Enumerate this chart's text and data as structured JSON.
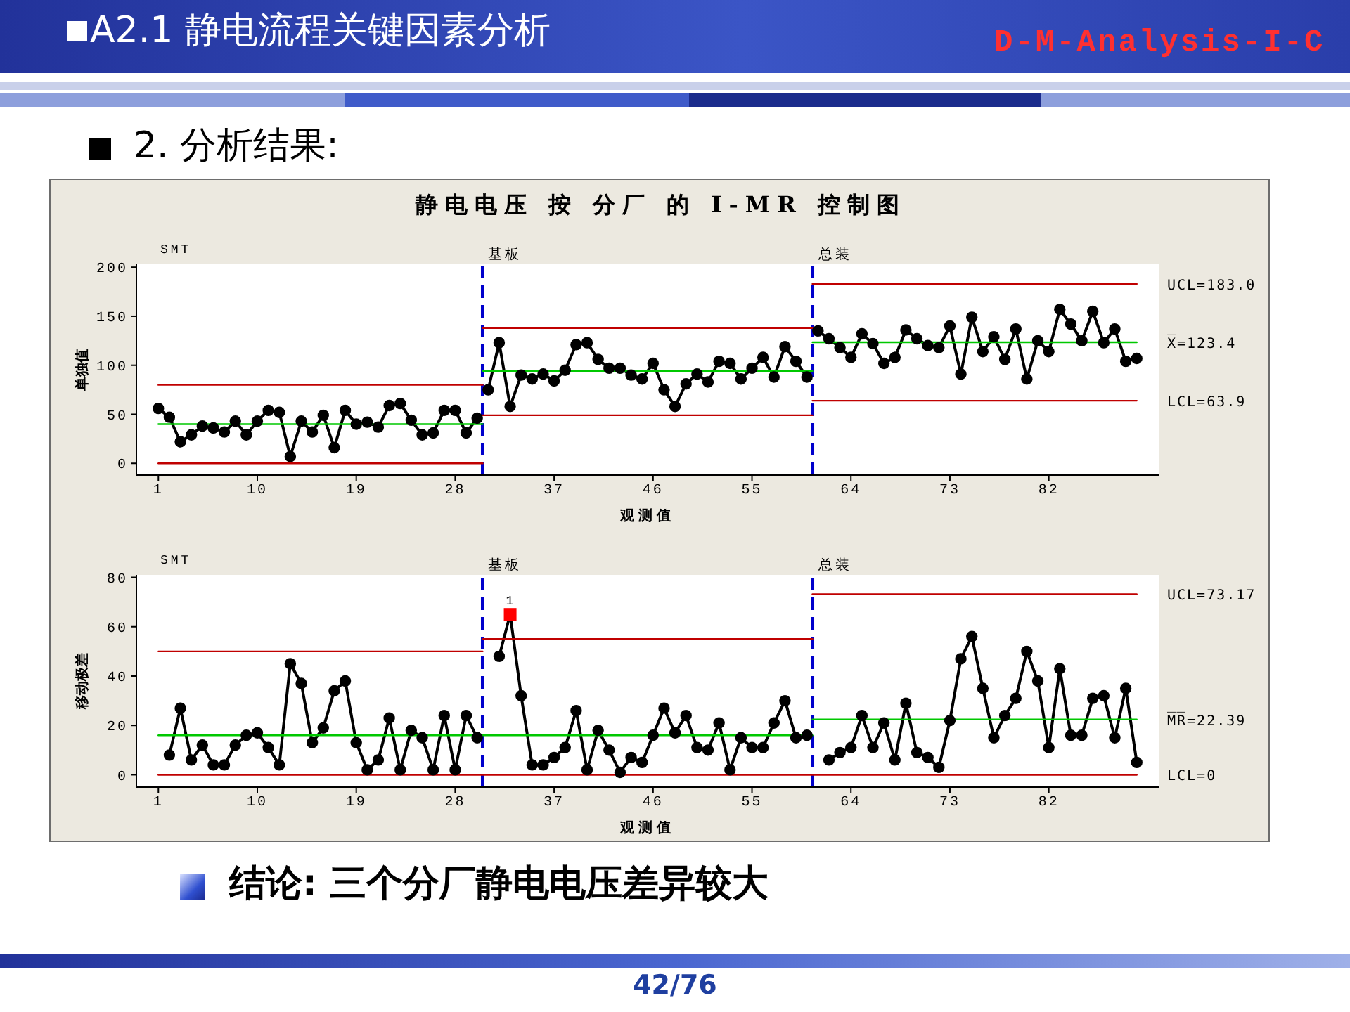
{
  "chart_data": [
    {
      "type": "line",
      "title": "静电电压 按 分厂 的 I-MR 控制图",
      "xlabel": "观测值",
      "ylabel": "单独值",
      "marker": "circle",
      "line_style": "solid",
      "xlim": [
        -1,
        92
      ],
      "xticks": [
        1,
        10,
        19,
        28,
        37,
        46,
        55,
        64,
        73,
        82
      ],
      "ylim": [
        -12,
        203
      ],
      "yticks": [
        0,
        50,
        100,
        150,
        200
      ],
      "series": [
        {
          "color": "#000000",
          "x": [
            1,
            2,
            3,
            4,
            5,
            6,
            7,
            8,
            9,
            10,
            11,
            12,
            13,
            14,
            15,
            16,
            17,
            18,
            19,
            20,
            21,
            22,
            23,
            24,
            25,
            26,
            27,
            28,
            29,
            30
          ],
          "values": [
            56,
            47,
            22,
            29,
            38,
            36,
            32,
            43,
            29,
            43,
            54,
            52,
            7,
            43,
            32,
            49,
            16,
            54,
            40,
            42,
            37,
            59,
            61,
            44,
            29,
            31,
            54,
            54,
            31,
            46
          ]
        },
        {
          "color": "#000000",
          "x": [
            31,
            32,
            33,
            34,
            35,
            36,
            37,
            38,
            39,
            40,
            41,
            42,
            43,
            44,
            45,
            46,
            47,
            48,
            49,
            50,
            51,
            52,
            53,
            54,
            55,
            56,
            57,
            58,
            59,
            60
          ],
          "values": [
            75,
            123,
            58,
            90,
            86,
            91,
            84,
            95,
            121,
            123,
            106,
            97,
            97,
            90,
            86,
            102,
            75,
            58,
            81,
            91,
            83,
            104,
            102,
            86,
            97,
            108,
            88,
            119,
            104,
            88
          ]
        },
        {
          "color": "#000000",
          "x": [
            61,
            62,
            63,
            64,
            65,
            66,
            67,
            68,
            69,
            70,
            71,
            72,
            73,
            74,
            75,
            76,
            77,
            78,
            79,
            80,
            81,
            82,
            83,
            84,
            85,
            86,
            87,
            88,
            89,
            90
          ],
          "values": [
            135,
            127,
            118,
            108,
            132,
            122,
            102,
            108,
            136,
            127,
            120,
            118,
            140,
            91,
            149,
            114,
            129,
            106,
            137,
            86,
            125,
            114,
            157,
            142,
            125,
            155,
            123,
            137,
            104,
            107
          ]
        },
        {
          "x": [
            1,
            30.5
          ],
          "values": [
            80,
            80
          ],
          "color": "#c00000",
          "marker": "none"
        },
        {
          "x": [
            1,
            30.5
          ],
          "values": [
            40,
            40
          ],
          "color": "#00c800",
          "marker": "none"
        },
        {
          "x": [
            1,
            30.5
          ],
          "values": [
            0,
            0
          ],
          "color": "#c00000",
          "marker": "none"
        },
        {
          "x": [
            30.5,
            60.5
          ],
          "values": [
            138,
            138
          ],
          "color": "#c00000",
          "marker": "none"
        },
        {
          "x": [
            30.5,
            60.5
          ],
          "values": [
            94,
            94
          ],
          "color": "#00c800",
          "marker": "none"
        },
        {
          "x": [
            30.5,
            60.5
          ],
          "values": [
            49,
            49
          ],
          "color": "#c00000",
          "marker": "none"
        },
        {
          "name": "UCL=183.0",
          "x": [
            60.5,
            90
          ],
          "values": [
            183.0,
            183.0
          ],
          "color": "#c00000",
          "marker": "none"
        },
        {
          "name": "X̅=123.4",
          "x": [
            60.5,
            90
          ],
          "values": [
            123.4,
            123.4
          ],
          "color": "#00c800",
          "marker": "none"
        },
        {
          "name": "LCL=63.9",
          "x": [
            60.5,
            90
          ],
          "values": [
            63.9,
            63.9
          ],
          "color": "#c00000",
          "marker": "none"
        }
      ],
      "ref_lines": [
        {
          "axis": "x",
          "value": 30.5,
          "label": "基板",
          "color": "#0000cc",
          "line_style": "dashed"
        },
        {
          "axis": "x",
          "value": 60.5,
          "label": "总装",
          "color": "#0000cc",
          "line_style": "dashed"
        }
      ],
      "annotations": [
        "SMT",
        "A2.1 静电流程关键因素分析",
        "D-M-Analysis-I-C",
        "2. 分析结果:"
      ]
    },
    {
      "type": "line",
      "xlabel": "观测值",
      "ylabel": "移动极差",
      "marker": "circle",
      "line_style": "solid",
      "xlim": [
        -1,
        92
      ],
      "xticks": [
        1,
        10,
        19,
        28,
        37,
        46,
        55,
        64,
        73,
        82
      ],
      "ylim": [
        -5,
        81
      ],
      "yticks": [
        0,
        20,
        40,
        60,
        80
      ],
      "series": [
        {
          "color": "#000000",
          "x": [
            2,
            3,
            4,
            5,
            6,
            7,
            8,
            9,
            10,
            11,
            12,
            13,
            14,
            15,
            16,
            17,
            18,
            19,
            20,
            21,
            22,
            23,
            24,
            25,
            26,
            27,
            28,
            29,
            30
          ],
          "values": [
            8,
            27,
            6,
            12,
            4,
            4,
            12,
            16,
            17,
            11,
            4,
            45,
            37,
            13,
            19,
            34,
            38,
            13,
            2,
            6,
            23,
            2,
            18,
            15,
            2,
            24,
            2,
            24,
            15
          ]
        },
        {
          "color": "#000000",
          "x": [
            32,
            33,
            34,
            35,
            36,
            37,
            38,
            39,
            40,
            41,
            42,
            43,
            44,
            45,
            46,
            47,
            48,
            49,
            50,
            51,
            52,
            53,
            54,
            55,
            56,
            57,
            58,
            59,
            60
          ],
          "values": [
            48,
            65,
            32,
            4,
            4,
            7,
            11,
            26,
            2,
            18,
            10,
            1,
            7,
            5,
            16,
            27,
            17,
            24,
            11,
            10,
            21,
            2,
            15,
            11,
            11,
            21,
            30,
            15,
            16
          ]
        },
        {
          "color": "#000000",
          "x": [
            62,
            63,
            64,
            65,
            66,
            67,
            68,
            69,
            70,
            71,
            72,
            73,
            74,
            75,
            76,
            77,
            78,
            79,
            80,
            81,
            82,
            83,
            84,
            85,
            86,
            87,
            88,
            89,
            90
          ],
          "values": [
            6,
            9,
            11,
            24,
            11,
            21,
            6,
            29,
            9,
            7,
            3,
            22,
            47,
            56,
            35,
            15,
            24,
            31,
            50,
            38,
            11,
            43,
            16,
            16,
            31,
            32,
            15,
            35,
            5
          ]
        },
        {
          "type": "scatter",
          "x": [
            33
          ],
          "values": [
            65
          ],
          "color": "#ff0000",
          "marker": "square"
        },
        {
          "x": [
            1,
            30.5
          ],
          "values": [
            50,
            50
          ],
          "color": "#c00000",
          "marker": "none"
        },
        {
          "x": [
            1,
            60.5
          ],
          "values": [
            16,
            16
          ],
          "color": "#00c800",
          "marker": "none"
        },
        {
          "x": [
            30.5,
            60.5
          ],
          "values": [
            55,
            55
          ],
          "color": "#c00000",
          "marker": "none"
        },
        {
          "name": "UCL=73.17",
          "x": [
            60.5,
            90
          ],
          "values": [
            73.17,
            73.17
          ],
          "color": "#c00000",
          "marker": "none"
        },
        {
          "name": "M̅R̅=22.39",
          "x": [
            60.5,
            90
          ],
          "values": [
            22.39,
            22.39
          ],
          "color": "#00c800",
          "marker": "none"
        },
        {
          "name": "LCL=0",
          "x": [
            1,
            90
          ],
          "values": [
            0,
            0
          ],
          "color": "#c00000",
          "marker": "none"
        }
      ],
      "ref_lines": [
        {
          "axis": "x",
          "value": 30.5,
          "label": "基板",
          "color": "#0000cc",
          "line_style": "dashed"
        },
        {
          "axis": "x",
          "value": 60.5,
          "label": "总装",
          "color": "#0000cc",
          "line_style": "dashed"
        }
      ],
      "annotations": [
        "SMT",
        {
          "text": "1",
          "x": 33,
          "y": 65
        },
        "结论: 三个分厂静电电压差异较大",
        "42/76"
      ]
    }
  ]
}
